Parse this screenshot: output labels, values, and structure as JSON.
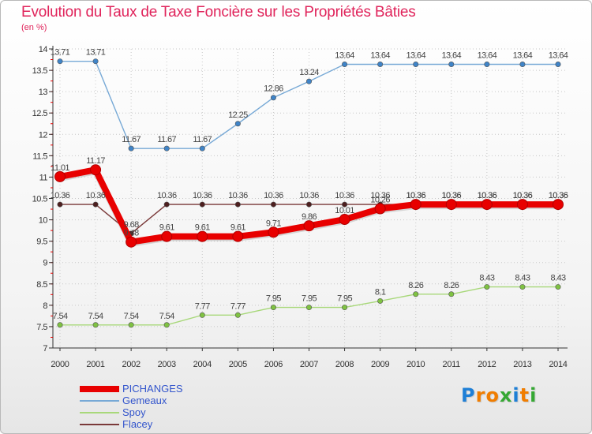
{
  "title": "Evolution du Taux de Taxe Foncière sur les Propriétés Bâties",
  "unit": "(en %)",
  "logo": {
    "letters": [
      "P",
      "r",
      "o",
      "x",
      "i",
      "t",
      "i"
    ],
    "colors": [
      "#1e7fd6",
      "#f07d00",
      "#f07d00",
      "#35a833",
      "#1e7fd6",
      "#f07d00",
      "#35a833"
    ]
  },
  "chart_data": {
    "type": "line",
    "title": "Evolution du Taux de Taxe Foncière sur les Propriétés Bâties",
    "ylabel": "(en %)",
    "x": [
      "2000",
      "2001",
      "2002",
      "2003",
      "2004",
      "2005",
      "2006",
      "2007",
      "2008",
      "2009",
      "2010",
      "2011",
      "2012",
      "2013",
      "2014"
    ],
    "ylim": [
      7,
      14
    ],
    "yticks": [
      "7",
      "7.5",
      "8",
      "8.5",
      "9",
      "9.5",
      "10",
      "10.5",
      "11",
      "11.5",
      "12",
      "12.5",
      "13",
      "13.5",
      "14"
    ],
    "series": [
      {
        "name": "PICHANGES",
        "color": "#e80000",
        "marker": "#e80000",
        "values": [
          11.01,
          11.17,
          9.48,
          9.61,
          9.61,
          9.61,
          9.71,
          9.86,
          10.01,
          10.26,
          10.36,
          10.36,
          10.36,
          10.36,
          10.36
        ],
        "labels": [
          "11.01",
          "11.17",
          "9.48",
          "9.61",
          "9.61",
          "9.61",
          "9.71",
          "9.86",
          "10.01",
          "10.26",
          "10.36",
          "10.36",
          "10.36",
          "10.36",
          "10.36"
        ]
      },
      {
        "name": "Gemeaux",
        "color": "#77a9d6",
        "marker": "#3f84c8",
        "values": [
          13.71,
          13.71,
          11.67,
          11.67,
          11.67,
          12.25,
          12.86,
          13.24,
          13.64,
          13.64,
          13.64,
          13.64,
          13.64,
          13.64,
          13.64
        ],
        "labels": [
          "13.71",
          "13.71",
          "11.67",
          "11.67",
          "11.67",
          "12.25",
          "12.86",
          "13.24",
          "13.64",
          "13.64",
          "13.64",
          "13.64",
          "13.64",
          "13.64",
          "13.64"
        ]
      },
      {
        "name": "Spoy",
        "color": "#a8d87a",
        "marker": "#7fc242",
        "values": [
          7.54,
          7.54,
          7.54,
          7.54,
          7.77,
          7.77,
          7.95,
          7.95,
          7.95,
          8.1,
          8.26,
          8.26,
          8.43,
          8.43,
          8.43
        ],
        "labels": [
          "7.54",
          "7.54",
          "7.54",
          "7.54",
          "7.77",
          "7.77",
          "7.95",
          "7.95",
          "7.95",
          "8.1",
          "8.26",
          "8.26",
          "8.43",
          "8.43",
          "8.43"
        ]
      },
      {
        "name": "Flacey",
        "color": "#7a3939",
        "marker": "#4d1f1f",
        "values": [
          10.36,
          10.36,
          9.68,
          10.36,
          10.36,
          10.36,
          10.36,
          10.36,
          10.36,
          10.36,
          10.36,
          10.36,
          10.36,
          10.36,
          10.36
        ],
        "labels": [
          "10.36",
          "10.36",
          "9.68",
          "10.36",
          "10.36",
          "10.36",
          "10.36",
          "10.36",
          "10.36",
          "10.36",
          "10.36",
          "10.36",
          "10.36",
          "10.36",
          "10.36"
        ]
      }
    ]
  }
}
